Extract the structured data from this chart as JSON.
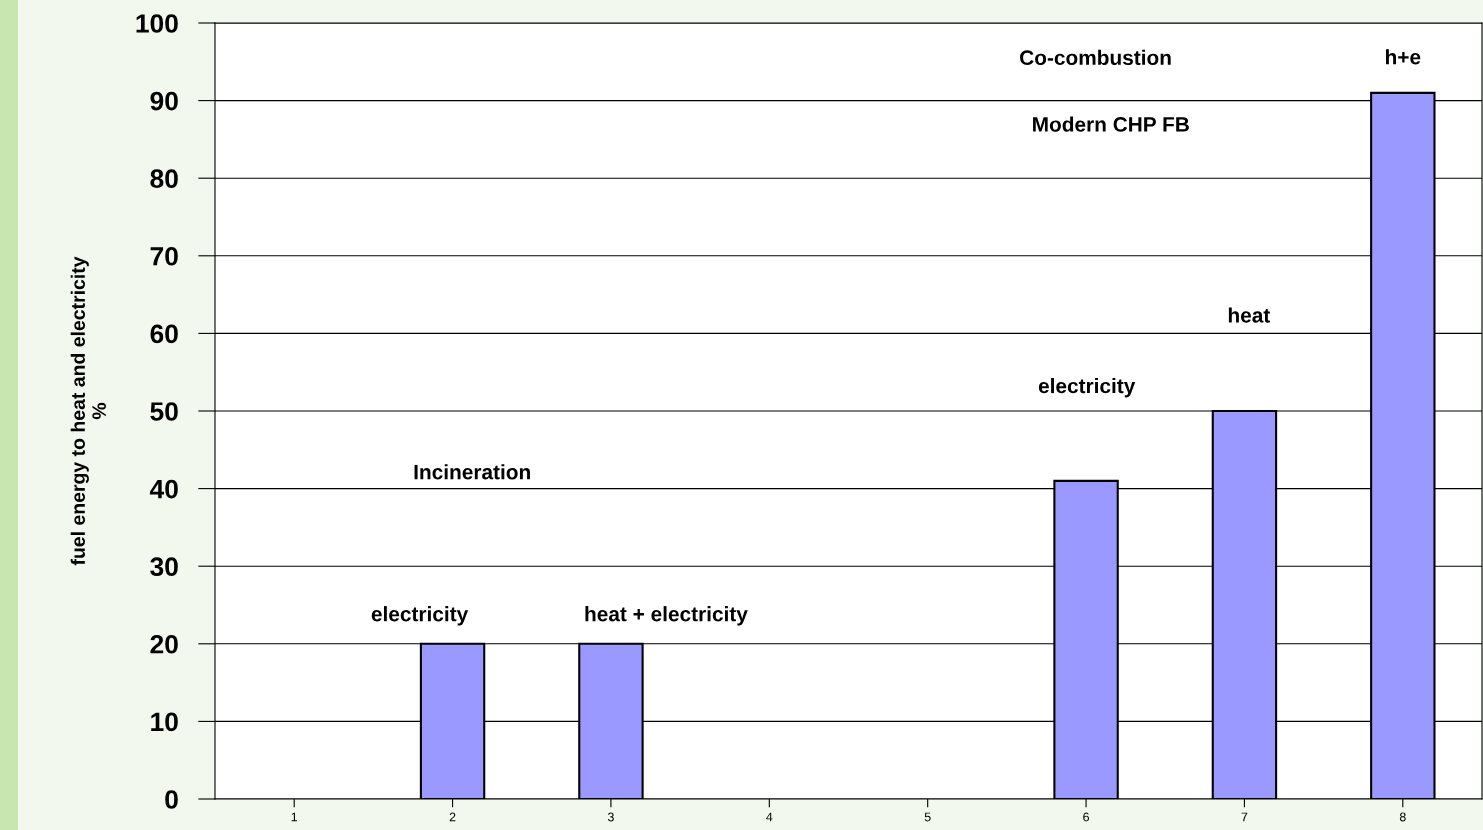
{
  "chart_data": {
    "type": "bar",
    "ylabel": "fuel energy to heat and electricity\n%",
    "categories": [
      "1",
      "2",
      "3",
      "4",
      "5",
      "6",
      "7",
      "8"
    ],
    "values": [
      null,
      20,
      20,
      null,
      null,
      41,
      50,
      91
    ],
    "color": "#9999ff",
    "ylim": [
      0,
      100
    ],
    "yticks": [
      0,
      10,
      20,
      30,
      40,
      50,
      60,
      70,
      80,
      90,
      100
    ],
    "grid": "y",
    "annotations": [
      "Incineration",
      "Co-combustion",
      "Modern CHP FB",
      "electricity",
      "heat",
      {
        "text": "electricity",
        "x": "2",
        "y": 20
      },
      {
        "text": "heat + electricity",
        "x": "3",
        "y": 20
      },
      {
        "text": "h+e",
        "x": "8",
        "y": 91
      }
    ]
  }
}
